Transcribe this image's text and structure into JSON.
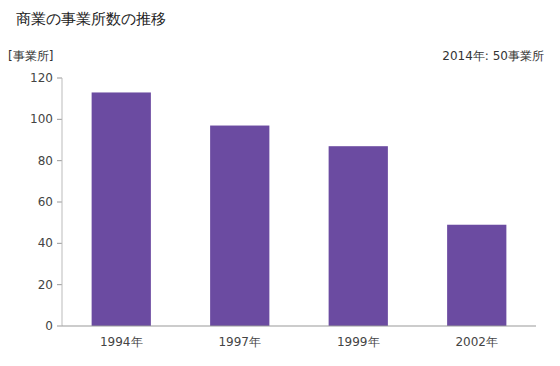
{
  "chart_data": {
    "type": "bar",
    "title": "商業の事業所数の推移",
    "ylabel": "[事業所]",
    "annotation": "2014年: 50事業所",
    "categories": [
      "1994年",
      "1997年",
      "1999年",
      "2002年"
    ],
    "values": [
      113,
      97,
      87,
      49
    ],
    "color": "#6B4BA1",
    "ylim": [
      0,
      120
    ],
    "yticks": [
      0,
      20,
      40,
      60,
      80,
      100,
      120
    ],
    "grid": false
  }
}
